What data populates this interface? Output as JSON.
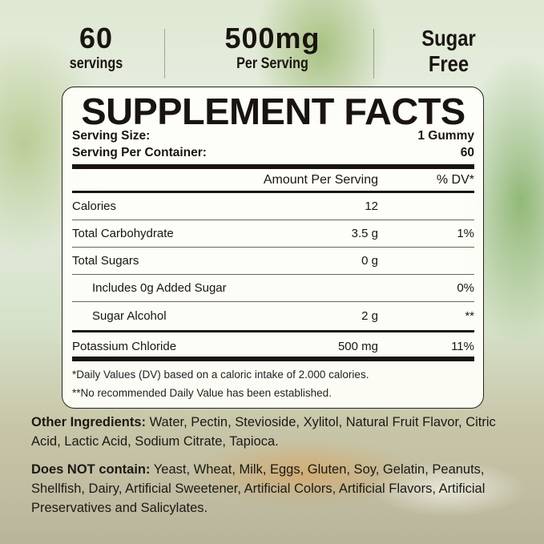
{
  "badges": [
    {
      "value": "60",
      "label": "servings"
    },
    {
      "value": "500mg",
      "label": "Per Serving"
    },
    {
      "value": "Sugar",
      "label": "Free"
    }
  ],
  "panel": {
    "title": "SUPPLEMENT FACTS",
    "serving_size_label": "Serving Size:",
    "serving_size": "1 Gummy",
    "per_container_label": "Serving Per Container:",
    "per_container": "60",
    "amount_header": "Amount Per Serving",
    "dv_header": "% DV*",
    "rows": [
      {
        "name": "Calories",
        "amount": "12",
        "dv": ""
      },
      {
        "name": "Total Carbohydrate",
        "amount": "3.5 g",
        "dv": "1%"
      },
      {
        "name": "Total Sugars",
        "amount": "0 g",
        "dv": ""
      },
      {
        "name": "Includes 0g Added Sugar",
        "amount": "",
        "dv": "0%"
      },
      {
        "name": "Sugar Alcohol",
        "amount": "2 g",
        "dv": "**"
      },
      {
        "name": "Potassium Chloride",
        "amount": "500 mg",
        "dv": "11%"
      }
    ],
    "footnote1": "*Daily Values (DV) based on a caloric intake of 2.000 calories.",
    "footnote2": "**No recommended Daily Value has been established."
  },
  "other_ingredients": {
    "label": "Other Ingredients:",
    "text": " Water, Pectin, Stevioside, Xylitol, Natural Fruit Flavor, Citric Acid, Lactic Acid, Sodium Citrate, Tapioca."
  },
  "does_not_contain": {
    "label": "Does NOT contain:",
    "text": " Yeast, Wheat, Milk, Eggs, Gluten, Soy, Gelatin, Peanuts, Shellfish, Dairy, Artificial Sweetener, Artificial Colors, Artificial Flavors, Artificial Preservatives and Salicylates."
  }
}
